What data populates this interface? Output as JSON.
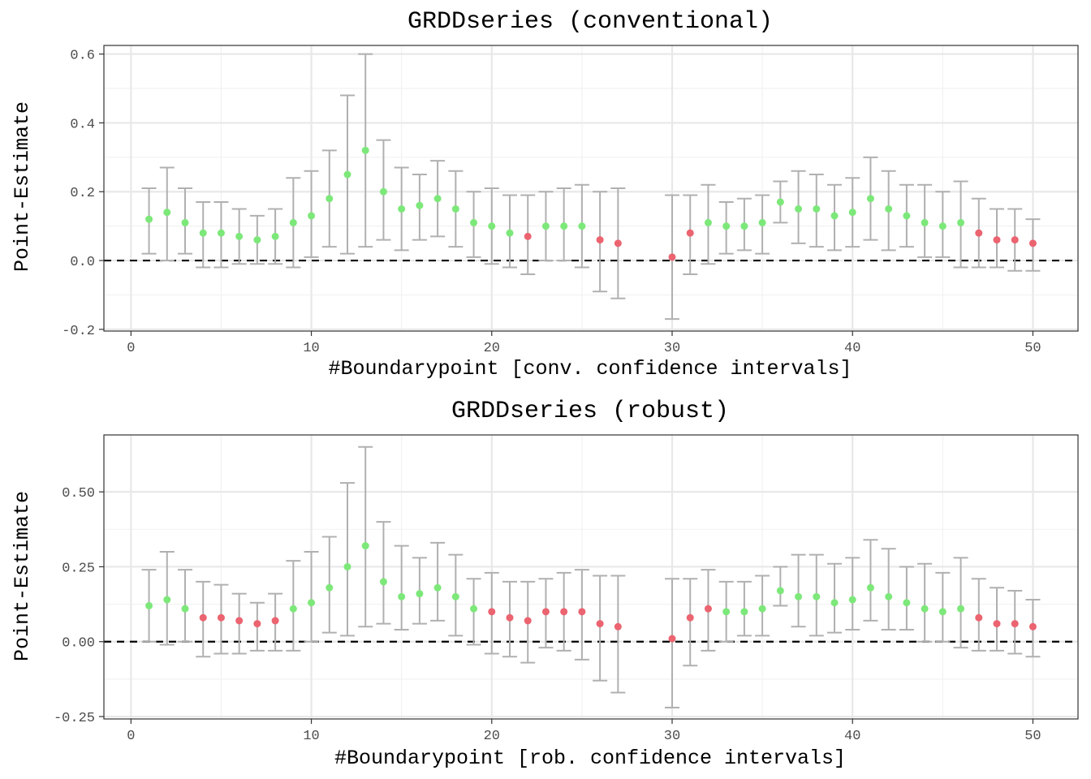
{
  "colors": {
    "significant": "#7de87a",
    "not_significant": "#eb6470",
    "errorbar": "#b0b0b0",
    "grid_major": "#e8e8e8",
    "grid_minor": "#f2f2f2",
    "panel_border": "#333333",
    "zero_line": "#000000"
  },
  "chart_data": [
    {
      "type": "scatter",
      "title": "GRDDseries (conventional)",
      "xlabel": "#Boundarypoint [conv. confidence intervals]",
      "ylabel": "Point-Estimate",
      "xlim": [
        -1.5,
        52.5
      ],
      "ylim": [
        -0.205,
        0.625
      ],
      "xticks": [
        0,
        10,
        20,
        30,
        40,
        50
      ],
      "xtick_labels": [
        "0",
        "10",
        "20",
        "30",
        "40",
        "50"
      ],
      "yticks": [
        -0.2,
        0.0,
        0.2,
        0.4,
        0.6
      ],
      "ytick_labels": [
        "-0.2",
        "0.0",
        "0.2",
        "0.4",
        "0.6"
      ],
      "reference_line": {
        "y": 0,
        "style": "dashed"
      },
      "grid": true,
      "legend": "none",
      "points": [
        {
          "x": 1,
          "y": 0.12,
          "lo": 0.02,
          "hi": 0.21,
          "sig": true
        },
        {
          "x": 2,
          "y": 0.14,
          "lo": 0.0,
          "hi": 0.27,
          "sig": true
        },
        {
          "x": 3,
          "y": 0.11,
          "lo": 0.02,
          "hi": 0.21,
          "sig": true
        },
        {
          "x": 4,
          "y": 0.08,
          "lo": -0.02,
          "hi": 0.17,
          "sig": true
        },
        {
          "x": 5,
          "y": 0.08,
          "lo": -0.02,
          "hi": 0.17,
          "sig": true
        },
        {
          "x": 6,
          "y": 0.07,
          "lo": -0.01,
          "hi": 0.15,
          "sig": true
        },
        {
          "x": 7,
          "y": 0.06,
          "lo": -0.01,
          "hi": 0.13,
          "sig": true
        },
        {
          "x": 8,
          "y": 0.07,
          "lo": -0.01,
          "hi": 0.15,
          "sig": true
        },
        {
          "x": 9,
          "y": 0.11,
          "lo": -0.02,
          "hi": 0.24,
          "sig": true
        },
        {
          "x": 10,
          "y": 0.13,
          "lo": 0.01,
          "hi": 0.26,
          "sig": true
        },
        {
          "x": 11,
          "y": 0.18,
          "lo": 0.04,
          "hi": 0.32,
          "sig": true
        },
        {
          "x": 12,
          "y": 0.25,
          "lo": 0.02,
          "hi": 0.48,
          "sig": true
        },
        {
          "x": 13,
          "y": 0.32,
          "lo": 0.04,
          "hi": 0.6,
          "sig": true
        },
        {
          "x": 14,
          "y": 0.2,
          "lo": 0.06,
          "hi": 0.35,
          "sig": true
        },
        {
          "x": 15,
          "y": 0.15,
          "lo": 0.03,
          "hi": 0.27,
          "sig": true
        },
        {
          "x": 16,
          "y": 0.16,
          "lo": 0.06,
          "hi": 0.25,
          "sig": true
        },
        {
          "x": 17,
          "y": 0.18,
          "lo": 0.07,
          "hi": 0.29,
          "sig": true
        },
        {
          "x": 18,
          "y": 0.15,
          "lo": 0.04,
          "hi": 0.26,
          "sig": true
        },
        {
          "x": 19,
          "y": 0.11,
          "lo": 0.01,
          "hi": 0.2,
          "sig": true
        },
        {
          "x": 20,
          "y": 0.1,
          "lo": -0.01,
          "hi": 0.21,
          "sig": true
        },
        {
          "x": 21,
          "y": 0.08,
          "lo": -0.02,
          "hi": 0.19,
          "sig": true
        },
        {
          "x": 22,
          "y": 0.07,
          "lo": -0.04,
          "hi": 0.19,
          "sig": false
        },
        {
          "x": 23,
          "y": 0.1,
          "lo": 0.0,
          "hi": 0.2,
          "sig": true
        },
        {
          "x": 24,
          "y": 0.1,
          "lo": 0.0,
          "hi": 0.21,
          "sig": true
        },
        {
          "x": 25,
          "y": 0.1,
          "lo": -0.02,
          "hi": 0.22,
          "sig": true
        },
        {
          "x": 26,
          "y": 0.06,
          "lo": -0.09,
          "hi": 0.2,
          "sig": false
        },
        {
          "x": 27,
          "y": 0.05,
          "lo": -0.11,
          "hi": 0.21,
          "sig": false
        },
        {
          "x": 30,
          "y": 0.01,
          "lo": -0.17,
          "hi": 0.19,
          "sig": false
        },
        {
          "x": 31,
          "y": 0.08,
          "lo": -0.04,
          "hi": 0.19,
          "sig": false
        },
        {
          "x": 32,
          "y": 0.11,
          "lo": -0.01,
          "hi": 0.22,
          "sig": true
        },
        {
          "x": 33,
          "y": 0.1,
          "lo": 0.02,
          "hi": 0.17,
          "sig": true
        },
        {
          "x": 34,
          "y": 0.1,
          "lo": 0.03,
          "hi": 0.18,
          "sig": true
        },
        {
          "x": 35,
          "y": 0.11,
          "lo": 0.02,
          "hi": 0.19,
          "sig": true
        },
        {
          "x": 36,
          "y": 0.17,
          "lo": 0.11,
          "hi": 0.23,
          "sig": true
        },
        {
          "x": 37,
          "y": 0.15,
          "lo": 0.05,
          "hi": 0.26,
          "sig": true
        },
        {
          "x": 38,
          "y": 0.15,
          "lo": 0.04,
          "hi": 0.25,
          "sig": true
        },
        {
          "x": 39,
          "y": 0.13,
          "lo": 0.03,
          "hi": 0.22,
          "sig": true
        },
        {
          "x": 40,
          "y": 0.14,
          "lo": 0.04,
          "hi": 0.24,
          "sig": true
        },
        {
          "x": 41,
          "y": 0.18,
          "lo": 0.06,
          "hi": 0.3,
          "sig": true
        },
        {
          "x": 42,
          "y": 0.15,
          "lo": 0.03,
          "hi": 0.26,
          "sig": true
        },
        {
          "x": 43,
          "y": 0.13,
          "lo": 0.04,
          "hi": 0.22,
          "sig": true
        },
        {
          "x": 44,
          "y": 0.11,
          "lo": 0.01,
          "hi": 0.22,
          "sig": true
        },
        {
          "x": 45,
          "y": 0.1,
          "lo": 0.01,
          "hi": 0.2,
          "sig": true
        },
        {
          "x": 46,
          "y": 0.11,
          "lo": -0.02,
          "hi": 0.23,
          "sig": true
        },
        {
          "x": 47,
          "y": 0.08,
          "lo": -0.02,
          "hi": 0.18,
          "sig": false
        },
        {
          "x": 48,
          "y": 0.06,
          "lo": -0.02,
          "hi": 0.15,
          "sig": false
        },
        {
          "x": 49,
          "y": 0.06,
          "lo": -0.03,
          "hi": 0.15,
          "sig": false
        },
        {
          "x": 50,
          "y": 0.05,
          "lo": -0.03,
          "hi": 0.12,
          "sig": false
        }
      ]
    },
    {
      "type": "scatter",
      "title": "GRDDseries (robust)",
      "xlabel": "#Boundarypoint [rob. confidence intervals]",
      "ylabel": "Point-Estimate",
      "xlim": [
        -1.5,
        52.5
      ],
      "ylim": [
        -0.258,
        0.69
      ],
      "xticks": [
        0,
        10,
        20,
        30,
        40,
        50
      ],
      "xtick_labels": [
        "0",
        "10",
        "20",
        "30",
        "40",
        "50"
      ],
      "yticks": [
        -0.25,
        0.0,
        0.25,
        0.5
      ],
      "ytick_labels": [
        "-0.25",
        "0.00",
        "0.25",
        "0.50"
      ],
      "reference_line": {
        "y": 0,
        "style": "dashed"
      },
      "grid": true,
      "legend": "none",
      "points": [
        {
          "x": 1,
          "y": 0.12,
          "lo": 0.0,
          "hi": 0.24,
          "sig": true
        },
        {
          "x": 2,
          "y": 0.14,
          "lo": -0.01,
          "hi": 0.3,
          "sig": true
        },
        {
          "x": 3,
          "y": 0.11,
          "lo": 0.0,
          "hi": 0.24,
          "sig": true
        },
        {
          "x": 4,
          "y": 0.08,
          "lo": -0.05,
          "hi": 0.2,
          "sig": false
        },
        {
          "x": 5,
          "y": 0.08,
          "lo": -0.04,
          "hi": 0.19,
          "sig": false
        },
        {
          "x": 6,
          "y": 0.07,
          "lo": -0.04,
          "hi": 0.16,
          "sig": false
        },
        {
          "x": 7,
          "y": 0.06,
          "lo": -0.03,
          "hi": 0.13,
          "sig": false
        },
        {
          "x": 8,
          "y": 0.07,
          "lo": -0.03,
          "hi": 0.16,
          "sig": false
        },
        {
          "x": 9,
          "y": 0.11,
          "lo": -0.03,
          "hi": 0.27,
          "sig": true
        },
        {
          "x": 10,
          "y": 0.13,
          "lo": 0.0,
          "hi": 0.3,
          "sig": true
        },
        {
          "x": 11,
          "y": 0.18,
          "lo": 0.03,
          "hi": 0.35,
          "sig": true
        },
        {
          "x": 12,
          "y": 0.25,
          "lo": 0.02,
          "hi": 0.53,
          "sig": true
        },
        {
          "x": 13,
          "y": 0.32,
          "lo": 0.05,
          "hi": 0.65,
          "sig": true
        },
        {
          "x": 14,
          "y": 0.2,
          "lo": 0.06,
          "hi": 0.4,
          "sig": true
        },
        {
          "x": 15,
          "y": 0.15,
          "lo": 0.04,
          "hi": 0.32,
          "sig": true
        },
        {
          "x": 16,
          "y": 0.16,
          "lo": 0.06,
          "hi": 0.28,
          "sig": true
        },
        {
          "x": 17,
          "y": 0.18,
          "lo": 0.07,
          "hi": 0.33,
          "sig": true
        },
        {
          "x": 18,
          "y": 0.15,
          "lo": 0.02,
          "hi": 0.29,
          "sig": true
        },
        {
          "x": 19,
          "y": 0.11,
          "lo": -0.01,
          "hi": 0.21,
          "sig": true
        },
        {
          "x": 20,
          "y": 0.1,
          "lo": -0.04,
          "hi": 0.23,
          "sig": false
        },
        {
          "x": 21,
          "y": 0.08,
          "lo": -0.05,
          "hi": 0.2,
          "sig": false
        },
        {
          "x": 22,
          "y": 0.07,
          "lo": -0.07,
          "hi": 0.2,
          "sig": false
        },
        {
          "x": 23,
          "y": 0.1,
          "lo": -0.02,
          "hi": 0.21,
          "sig": false
        },
        {
          "x": 24,
          "y": 0.1,
          "lo": -0.03,
          "hi": 0.23,
          "sig": false
        },
        {
          "x": 25,
          "y": 0.1,
          "lo": -0.06,
          "hi": 0.24,
          "sig": false
        },
        {
          "x": 26,
          "y": 0.06,
          "lo": -0.13,
          "hi": 0.22,
          "sig": false
        },
        {
          "x": 27,
          "y": 0.05,
          "lo": -0.17,
          "hi": 0.22,
          "sig": false
        },
        {
          "x": 30,
          "y": 0.01,
          "lo": -0.22,
          "hi": 0.21,
          "sig": false
        },
        {
          "x": 31,
          "y": 0.08,
          "lo": -0.08,
          "hi": 0.21,
          "sig": false
        },
        {
          "x": 32,
          "y": 0.11,
          "lo": -0.03,
          "hi": 0.24,
          "sig": false
        },
        {
          "x": 33,
          "y": 0.1,
          "lo": 0.0,
          "hi": 0.2,
          "sig": true
        },
        {
          "x": 34,
          "y": 0.1,
          "lo": 0.02,
          "hi": 0.2,
          "sig": true
        },
        {
          "x": 35,
          "y": 0.11,
          "lo": 0.02,
          "hi": 0.22,
          "sig": true
        },
        {
          "x": 36,
          "y": 0.17,
          "lo": 0.12,
          "hi": 0.25,
          "sig": true
        },
        {
          "x": 37,
          "y": 0.15,
          "lo": 0.05,
          "hi": 0.29,
          "sig": true
        },
        {
          "x": 38,
          "y": 0.15,
          "lo": 0.02,
          "hi": 0.29,
          "sig": true
        },
        {
          "x": 39,
          "y": 0.13,
          "lo": 0.03,
          "hi": 0.26,
          "sig": true
        },
        {
          "x": 40,
          "y": 0.14,
          "lo": 0.04,
          "hi": 0.28,
          "sig": true
        },
        {
          "x": 41,
          "y": 0.18,
          "lo": 0.07,
          "hi": 0.34,
          "sig": true
        },
        {
          "x": 42,
          "y": 0.15,
          "lo": 0.04,
          "hi": 0.31,
          "sig": true
        },
        {
          "x": 43,
          "y": 0.13,
          "lo": 0.04,
          "hi": 0.25,
          "sig": true
        },
        {
          "x": 44,
          "y": 0.11,
          "lo": 0.0,
          "hi": 0.26,
          "sig": true
        },
        {
          "x": 45,
          "y": 0.1,
          "lo": 0.0,
          "hi": 0.23,
          "sig": true
        },
        {
          "x": 46,
          "y": 0.11,
          "lo": -0.02,
          "hi": 0.28,
          "sig": true
        },
        {
          "x": 47,
          "y": 0.08,
          "lo": -0.03,
          "hi": 0.21,
          "sig": false
        },
        {
          "x": 48,
          "y": 0.06,
          "lo": -0.03,
          "hi": 0.18,
          "sig": false
        },
        {
          "x": 49,
          "y": 0.06,
          "lo": -0.04,
          "hi": 0.17,
          "sig": false
        },
        {
          "x": 50,
          "y": 0.05,
          "lo": -0.05,
          "hi": 0.14,
          "sig": false
        }
      ]
    }
  ]
}
